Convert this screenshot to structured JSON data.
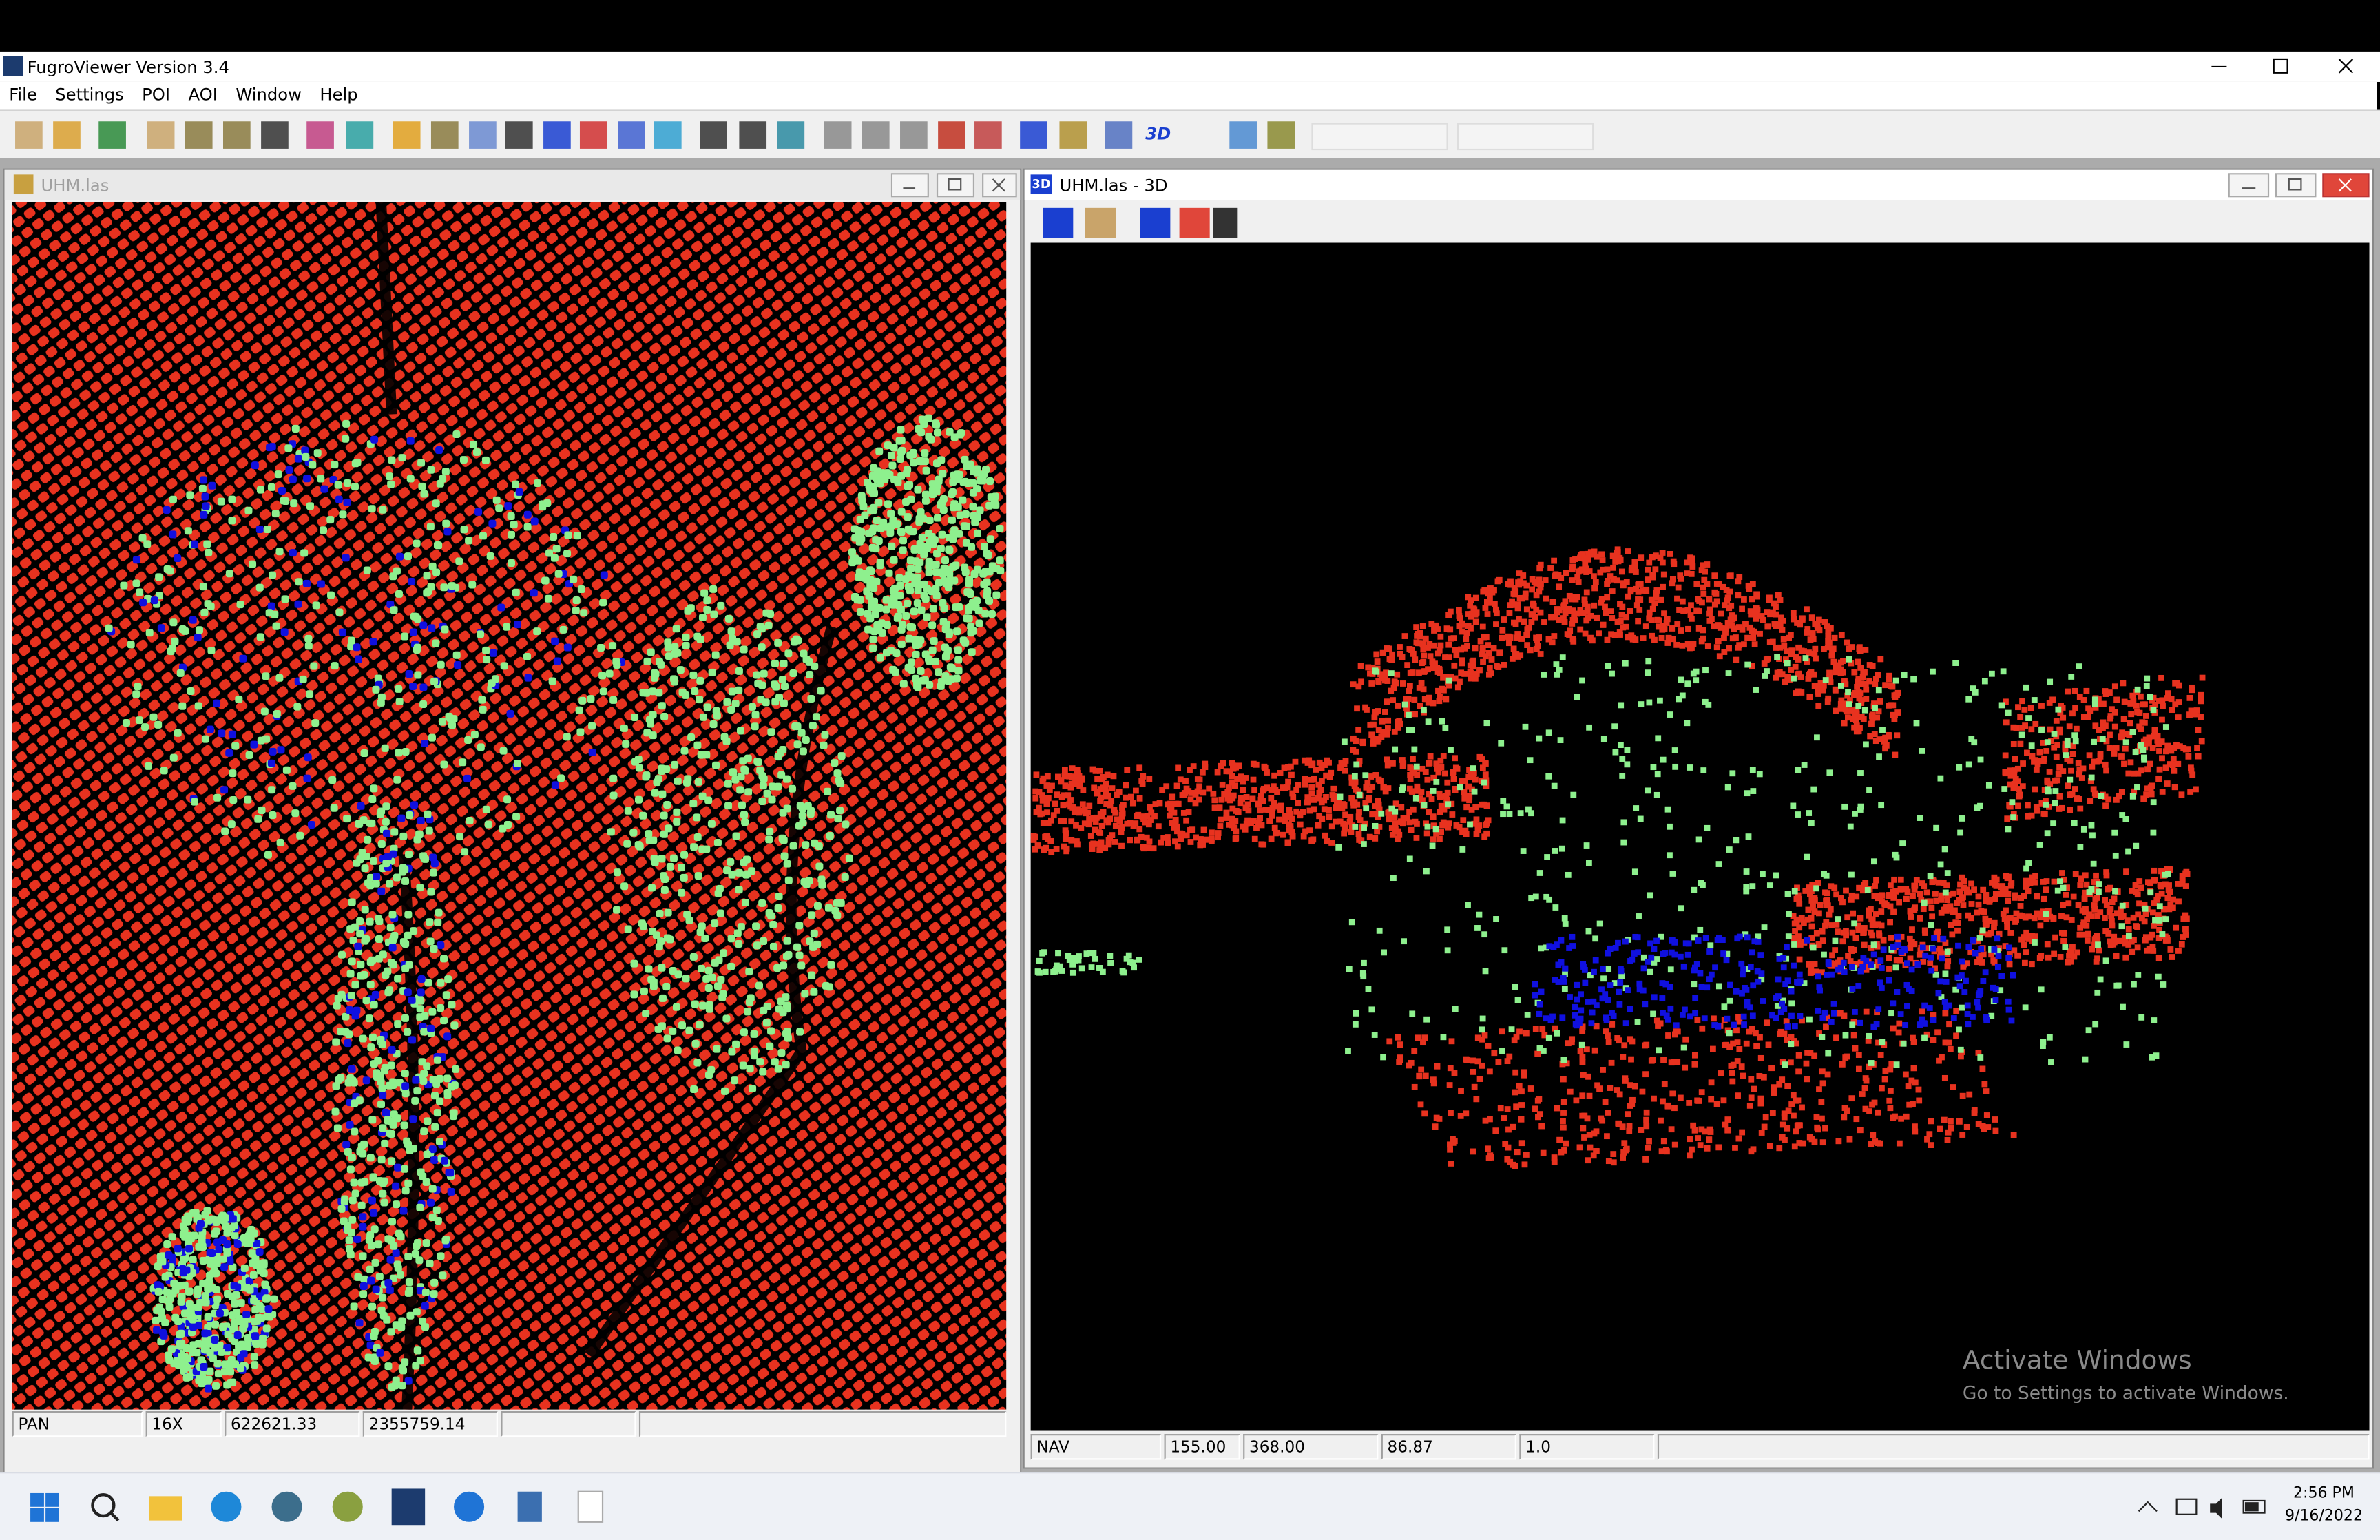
{
  "app": {
    "title": "FugroViewer  Version 3.4",
    "menu": [
      "File",
      "Settings",
      "POI",
      "AOI",
      "Window",
      "Help"
    ]
  },
  "toolbar": {
    "button_3d": "3D"
  },
  "windows": [
    {
      "title": "UHM.las",
      "status": [
        "PAN",
        "16X",
        "622621.33",
        "2355759.14"
      ]
    },
    {
      "title": "UHM.las - 3D",
      "badge": "3D",
      "status": [
        "NAV",
        "155.00",
        "368.00",
        "86.87",
        "1.0"
      ]
    }
  ],
  "watermark": {
    "title": "Activate Windows",
    "subtitle": "Go to Settings to activate Windows."
  },
  "taskbar": {
    "time": "2:56 PM",
    "date": "9/16/2022"
  }
}
